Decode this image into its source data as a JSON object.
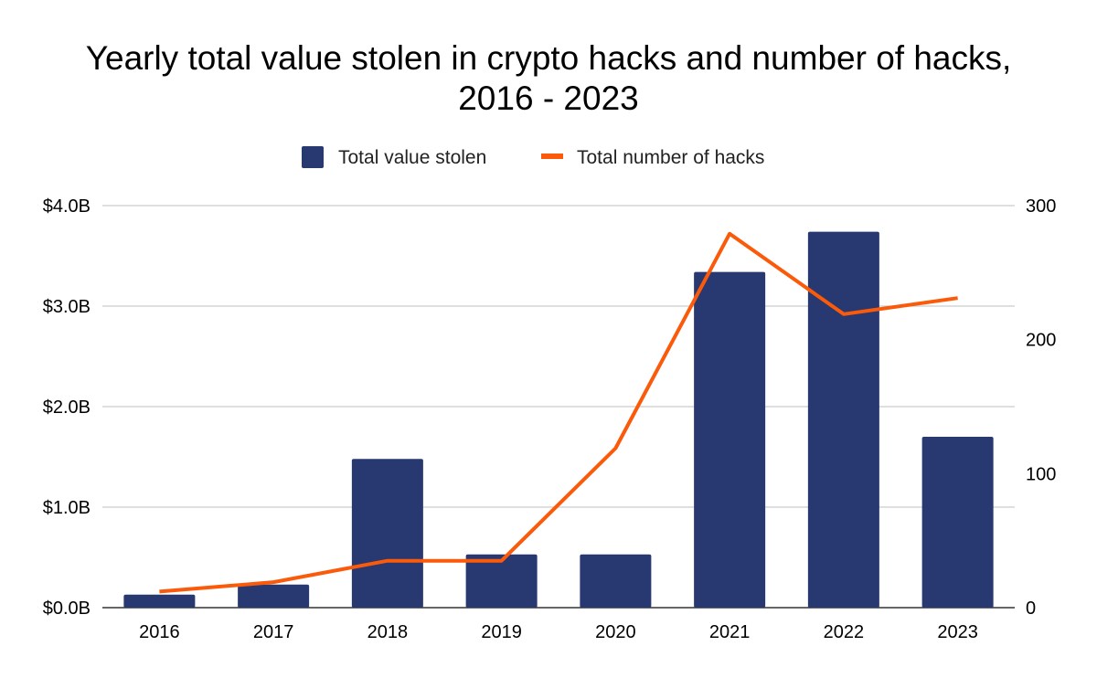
{
  "chart_data": {
    "type": "bar",
    "title": "Yearly total value stolen in crypto hacks and number of hacks,",
    "subtitle": "2016 - 2023",
    "categories": [
      "2016",
      "2017",
      "2018",
      "2019",
      "2020",
      "2021",
      "2022",
      "2023"
    ],
    "series": [
      {
        "name": "Total value stolen",
        "type": "bar",
        "axis": "left",
        "unit": "billion USD",
        "color": "#283870",
        "values": [
          0.13,
          0.23,
          1.48,
          0.53,
          0.53,
          3.34,
          3.74,
          1.7
        ]
      },
      {
        "name": "Total number of hacks",
        "type": "line",
        "axis": "right",
        "color": "#fa5a0a",
        "values": [
          12,
          19,
          35,
          35,
          119,
          279,
          219,
          231
        ]
      }
    ],
    "y_left": {
      "min": 0,
      "max": 4,
      "ticks": [
        0,
        1,
        2,
        3,
        4
      ],
      "tick_labels": [
        "$0.0B",
        "$1.0B",
        "$2.0B",
        "$3.0B",
        "$4.0B"
      ]
    },
    "y_right": {
      "min": 0,
      "max": 300,
      "ticks": [
        0,
        100,
        200,
        300
      ],
      "tick_labels": [
        "0",
        "100",
        "200",
        "300"
      ]
    },
    "xlabel": "",
    "ylabel": "",
    "grid": true,
    "gridline_color": "#cccccc",
    "legend_position": "top-center"
  }
}
